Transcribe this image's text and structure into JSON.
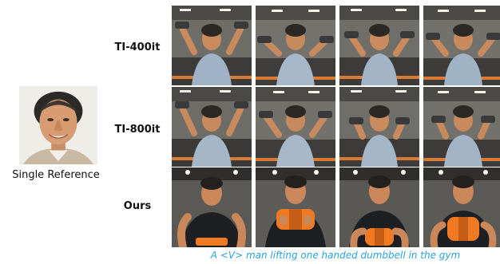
{
  "reference": {
    "label": "Single Reference"
  },
  "rows": [
    {
      "label": "TI-400it"
    },
    {
      "label": "TI-800it"
    },
    {
      "label": "Ours"
    }
  ],
  "caption": "A <V> man lifting one handed dumbbell in the gym"
}
